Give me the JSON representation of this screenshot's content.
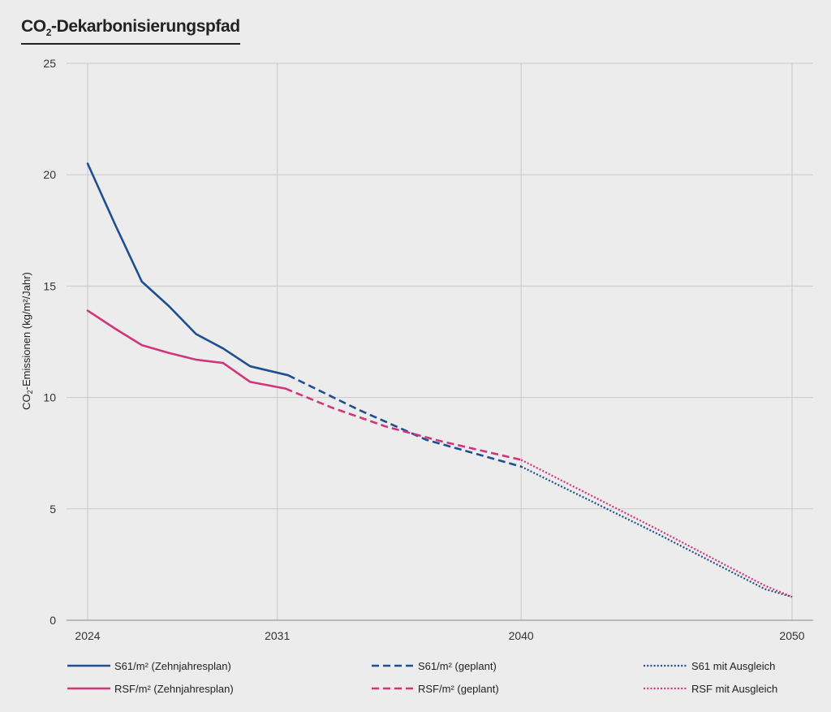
{
  "colors": {
    "s61": "#1d4f91",
    "rsf": "#d1357a",
    "grid": "#c9c9c9",
    "axis": "#9a9a9a",
    "background": "#ececec"
  },
  "title": {
    "prefix": "CO",
    "subscript": "2",
    "suffix": "-Dekarbonisierungspfad"
  },
  "chart_data": {
    "type": "line",
    "title": "CO2-Dekarbonisierungspfad",
    "xlabel": "",
    "ylabel": "CO2-Emissionen (kg/m²/Jahr)",
    "xlim": [
      2024,
      2050
    ],
    "ylim": [
      0,
      25
    ],
    "x_ticks": [
      2024,
      2031,
      2040,
      2050
    ],
    "y_ticks": [
      0,
      5,
      10,
      15,
      20,
      25
    ],
    "grid": true,
    "legend_position": "bottom",
    "series": [
      {
        "name": "S61/m² (Zehnjahresplan)",
        "color_key": "s61",
        "style": "solid",
        "x": [
          2024,
          2025,
          2026,
          2027,
          2028,
          2029,
          2030,
          2031.4
        ],
        "y": [
          20.5,
          17.8,
          15.2,
          14.1,
          12.85,
          12.2,
          11.4,
          11.0
        ]
      },
      {
        "name": "RSF/m² (Zehnjahresplan)",
        "color_key": "rsf",
        "style": "solid",
        "x": [
          2024,
          2025,
          2026,
          2027,
          2028,
          2029,
          2030,
          2031.3
        ],
        "y": [
          13.9,
          13.1,
          12.35,
          12.0,
          11.7,
          11.55,
          10.7,
          10.4
        ]
      },
      {
        "name": "S61/m² (geplant)",
        "color_key": "s61",
        "style": "dashed",
        "x": [
          2031.4,
          2034,
          2036.5,
          2040
        ],
        "y": [
          11.0,
          9.45,
          8.1,
          6.9
        ]
      },
      {
        "name": "RSF/m² (geplant)",
        "color_key": "rsf",
        "style": "dashed",
        "x": [
          2031.3,
          2033,
          2035,
          2037,
          2040
        ],
        "y": [
          10.4,
          9.55,
          8.7,
          8.05,
          7.2
        ]
      },
      {
        "name": "S61 mit Ausgleich",
        "color_key": "s61",
        "style": "dotted",
        "x": [
          2040,
          2045,
          2049,
          2050
        ],
        "y": [
          6.9,
          3.9,
          1.4,
          1.05
        ]
      },
      {
        "name": "RSF mit Ausgleich",
        "color_key": "rsf",
        "style": "dotted",
        "x": [
          2040,
          2045,
          2049,
          2050
        ],
        "y": [
          7.2,
          4.1,
          1.55,
          1.05
        ]
      }
    ]
  },
  "axis_title": {
    "prefix": "CO",
    "subscript": "2",
    "suffix": "-Emissionen (kg/m²/Jahr)"
  }
}
